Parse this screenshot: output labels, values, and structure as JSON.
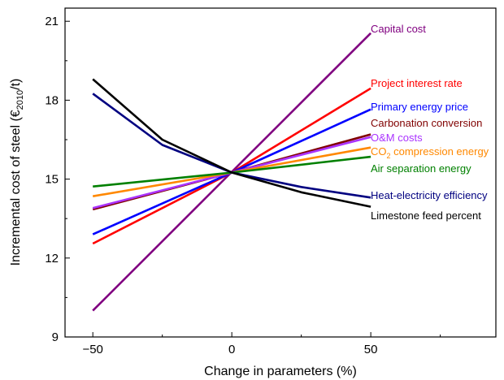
{
  "chart_data": {
    "type": "line",
    "xlabel": "Change in parameters (%)",
    "ylabel": "Incremental cost of steel (€",
    "ylabel_sub": "2010",
    "ylabel_end": "/t)",
    "xlim": [
      -60,
      95
    ],
    "ylim": [
      9,
      21.5
    ],
    "xticks": [
      -50,
      0,
      50
    ],
    "xtick_labels": [
      "−50",
      "0",
      "50"
    ],
    "yticks": [
      9,
      12,
      15,
      18,
      21
    ],
    "ytick_labels": [
      "9",
      "12",
      "15",
      "18",
      "21"
    ],
    "grid": false,
    "legend": "inline labels at right end of lines",
    "series": [
      {
        "name": "Capital cost",
        "color": "#800080",
        "x": [
          -50,
          50
        ],
        "y": [
          10.0,
          20.55
        ]
      },
      {
        "name": "Project interest rate",
        "color": "#ff0000",
        "x": [
          -50,
          0,
          50
        ],
        "y": [
          12.55,
          15.25,
          18.45
        ]
      },
      {
        "name": "Primary energy price",
        "color": "#0000ff",
        "x": [
          -50,
          0,
          50
        ],
        "y": [
          12.9,
          15.25,
          17.65
        ]
      },
      {
        "name": "Carbonation conversion",
        "color": "#800000",
        "x": [
          -50,
          0,
          50
        ],
        "y": [
          13.85,
          15.25,
          16.7
        ]
      },
      {
        "name": "O&M costs",
        "color": "#aa33ff",
        "x": [
          -50,
          0,
          50
        ],
        "y": [
          13.9,
          15.25,
          16.6
        ]
      },
      {
        "name": "CO",
        "name_sub": "2",
        "name_end": " compression energy",
        "color": "#ff8800",
        "x": [
          -50,
          0,
          50
        ],
        "y": [
          14.35,
          15.25,
          16.2
        ]
      },
      {
        "name": "Air separation energy",
        "color": "#008000",
        "x": [
          -50,
          0,
          50
        ],
        "y": [
          14.72,
          15.25,
          15.85
        ]
      },
      {
        "name": "Heat-electricity efficiency",
        "color": "#000080",
        "x": [
          -50,
          -25,
          0,
          25,
          50
        ],
        "y": [
          18.25,
          16.3,
          15.25,
          14.7,
          14.3
        ]
      },
      {
        "name": "Limestone feed percent",
        "color": "#000000",
        "x": [
          -50,
          -25,
          0,
          25,
          50
        ],
        "y": [
          18.8,
          16.5,
          15.25,
          14.5,
          13.95
        ]
      }
    ]
  }
}
